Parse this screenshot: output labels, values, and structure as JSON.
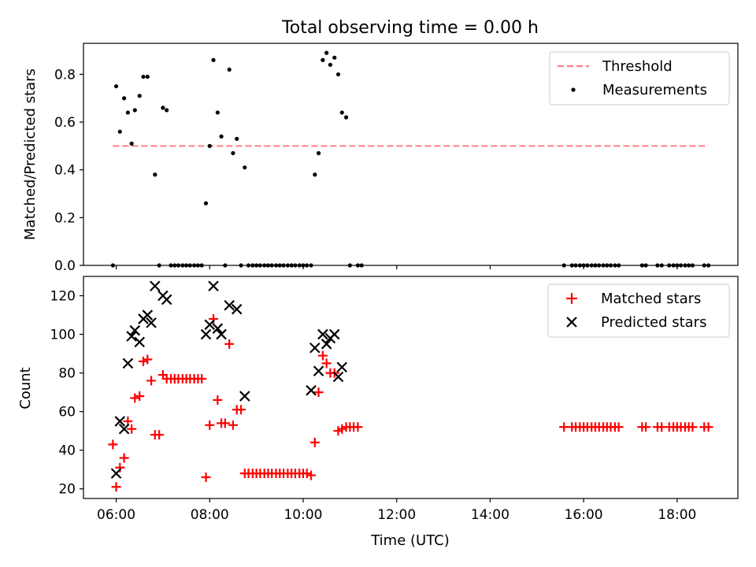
{
  "chart_data": [
    {
      "type": "scatter",
      "title": "Total observing time = 0.00 h",
      "xlabel": "",
      "ylabel": "Matched/Predicted stars",
      "x_unit": "hours UTC",
      "xlim": [
        5.3,
        19.3
      ],
      "ylim": [
        0,
        0.93
      ],
      "yticks": [
        0.0,
        0.2,
        0.4,
        0.6,
        0.8
      ],
      "ytick_labels": [
        "0.0",
        "0.2",
        "0.4",
        "0.6",
        "0.8"
      ],
      "xticks": [
        6,
        8,
        10,
        12,
        14,
        16,
        18
      ],
      "grid": false,
      "legend": {
        "position": "top-right",
        "entries": [
          "Threshold",
          "Measurements"
        ]
      },
      "threshold": {
        "name": "Threshold",
        "value": 0.5,
        "x_start": 5.93,
        "x_end": 18.67,
        "color": "#ff7f7f",
        "style": "dashed"
      },
      "series": [
        {
          "name": "Measurements",
          "marker": "dot",
          "color": "#000000",
          "points": [
            [
              5.93,
              0.0
            ],
            [
              6.0,
              0.75
            ],
            [
              6.08,
              0.56
            ],
            [
              6.17,
              0.7
            ],
            [
              6.25,
              0.64
            ],
            [
              6.33,
              0.51
            ],
            [
              6.4,
              0.65
            ],
            [
              6.5,
              0.71
            ],
            [
              6.58,
              0.79
            ],
            [
              6.67,
              0.79
            ],
            [
              6.83,
              0.38
            ],
            [
              6.92,
              0.0
            ],
            [
              7.0,
              0.66
            ],
            [
              7.08,
              0.65
            ],
            [
              7.17,
              0.0
            ],
            [
              7.25,
              0.0
            ],
            [
              7.33,
              0.0
            ],
            [
              7.42,
              0.0
            ],
            [
              7.5,
              0.0
            ],
            [
              7.58,
              0.0
            ],
            [
              7.67,
              0.0
            ],
            [
              7.75,
              0.0
            ],
            [
              7.83,
              0.0
            ],
            [
              7.92,
              0.26
            ],
            [
              8.0,
              0.5
            ],
            [
              8.08,
              0.86
            ],
            [
              8.17,
              0.64
            ],
            [
              8.25,
              0.54
            ],
            [
              8.33,
              0.0
            ],
            [
              8.42,
              0.82
            ],
            [
              8.5,
              0.47
            ],
            [
              8.58,
              0.53
            ],
            [
              8.67,
              0.0
            ],
            [
              8.75,
              0.41
            ],
            [
              8.83,
              0.0
            ],
            [
              8.92,
              0.0
            ],
            [
              9.0,
              0.0
            ],
            [
              9.08,
              0.0
            ],
            [
              9.17,
              0.0
            ],
            [
              9.25,
              0.0
            ],
            [
              9.33,
              0.0
            ],
            [
              9.42,
              0.0
            ],
            [
              9.5,
              0.0
            ],
            [
              9.58,
              0.0
            ],
            [
              9.67,
              0.0
            ],
            [
              9.75,
              0.0
            ],
            [
              9.83,
              0.0
            ],
            [
              9.92,
              0.0
            ],
            [
              10.0,
              0.0
            ],
            [
              10.08,
              0.0
            ],
            [
              10.17,
              0.0
            ],
            [
              10.25,
              0.38
            ],
            [
              10.33,
              0.47
            ],
            [
              10.42,
              0.86
            ],
            [
              10.5,
              0.89
            ],
            [
              10.58,
              0.84
            ],
            [
              10.67,
              0.87
            ],
            [
              10.75,
              0.8
            ],
            [
              10.83,
              0.64
            ],
            [
              10.92,
              0.62
            ],
            [
              11.0,
              0.0
            ],
            [
              11.17,
              0.0
            ],
            [
              11.25,
              0.0
            ],
            [
              15.58,
              0.0
            ],
            [
              15.75,
              0.0
            ],
            [
              15.83,
              0.0
            ],
            [
              15.92,
              0.0
            ],
            [
              16.0,
              0.0
            ],
            [
              16.08,
              0.0
            ],
            [
              16.17,
              0.0
            ],
            [
              16.25,
              0.0
            ],
            [
              16.33,
              0.0
            ],
            [
              16.42,
              0.0
            ],
            [
              16.5,
              0.0
            ],
            [
              16.58,
              0.0
            ],
            [
              16.67,
              0.0
            ],
            [
              16.75,
              0.0
            ],
            [
              17.25,
              0.0
            ],
            [
              17.33,
              0.0
            ],
            [
              17.58,
              0.0
            ],
            [
              17.67,
              0.0
            ],
            [
              17.83,
              0.0
            ],
            [
              17.92,
              0.0
            ],
            [
              18.0,
              0.0
            ],
            [
              18.08,
              0.0
            ],
            [
              18.17,
              0.0
            ],
            [
              18.25,
              0.0
            ],
            [
              18.33,
              0.0
            ],
            [
              18.58,
              0.0
            ],
            [
              18.67,
              0.0
            ]
          ]
        }
      ]
    },
    {
      "type": "scatter",
      "title": "",
      "xlabel": "Time (UTC)",
      "ylabel": "Count",
      "x_unit": "hours UTC",
      "xlim": [
        5.3,
        19.3
      ],
      "ylim": [
        15,
        130
      ],
      "yticks": [
        20,
        40,
        60,
        80,
        100,
        120
      ],
      "ytick_labels": [
        "20",
        "40",
        "60",
        "80",
        "100",
        "120"
      ],
      "xticks": [
        6,
        8,
        10,
        12,
        14,
        16,
        18
      ],
      "xtick_labels": [
        "06:00",
        "08:00",
        "10:00",
        "12:00",
        "14:00",
        "16:00",
        "18:00"
      ],
      "grid": false,
      "legend": {
        "position": "top-right",
        "entries": [
          "Matched stars",
          "Predicted stars"
        ]
      },
      "series": [
        {
          "name": "Matched stars",
          "marker": "plus",
          "color": "#ff0000",
          "points": [
            [
              5.93,
              43
            ],
            [
              6.0,
              21
            ],
            [
              6.08,
              31
            ],
            [
              6.17,
              36
            ],
            [
              6.25,
              55
            ],
            [
              6.33,
              51
            ],
            [
              6.4,
              67
            ],
            [
              6.5,
              68
            ],
            [
              6.58,
              86
            ],
            [
              6.67,
              87
            ],
            [
              6.75,
              76
            ],
            [
              6.83,
              48
            ],
            [
              6.92,
              48
            ],
            [
              7.0,
              79
            ],
            [
              7.08,
              77
            ],
            [
              7.17,
              77
            ],
            [
              7.25,
              77
            ],
            [
              7.33,
              77
            ],
            [
              7.42,
              77
            ],
            [
              7.5,
              77
            ],
            [
              7.58,
              77
            ],
            [
              7.67,
              77
            ],
            [
              7.75,
              77
            ],
            [
              7.83,
              77
            ],
            [
              7.92,
              26
            ],
            [
              8.0,
              53
            ],
            [
              8.08,
              108
            ],
            [
              8.17,
              66
            ],
            [
              8.25,
              54
            ],
            [
              8.33,
              54
            ],
            [
              8.42,
              95
            ],
            [
              8.5,
              53
            ],
            [
              8.58,
              61
            ],
            [
              8.67,
              61
            ],
            [
              8.75,
              28
            ],
            [
              8.83,
              28
            ],
            [
              8.92,
              28
            ],
            [
              9.0,
              28
            ],
            [
              9.08,
              28
            ],
            [
              9.17,
              28
            ],
            [
              9.25,
              28
            ],
            [
              9.33,
              28
            ],
            [
              9.42,
              28
            ],
            [
              9.5,
              28
            ],
            [
              9.58,
              28
            ],
            [
              9.67,
              28
            ],
            [
              9.75,
              28
            ],
            [
              9.83,
              28
            ],
            [
              9.92,
              28
            ],
            [
              10.0,
              28
            ],
            [
              10.08,
              28
            ],
            [
              10.17,
              27
            ],
            [
              10.25,
              44
            ],
            [
              10.33,
              70
            ],
            [
              10.42,
              89
            ],
            [
              10.5,
              85
            ],
            [
              10.58,
              80
            ],
            [
              10.67,
              80
            ],
            [
              10.75,
              50
            ],
            [
              10.83,
              51
            ],
            [
              10.92,
              52
            ],
            [
              11.0,
              52
            ],
            [
              11.08,
              52
            ],
            [
              11.17,
              52
            ],
            [
              15.58,
              52
            ],
            [
              15.75,
              52
            ],
            [
              15.83,
              52
            ],
            [
              15.92,
              52
            ],
            [
              16.0,
              52
            ],
            [
              16.08,
              52
            ],
            [
              16.17,
              52
            ],
            [
              16.25,
              52
            ],
            [
              16.33,
              52
            ],
            [
              16.42,
              52
            ],
            [
              16.5,
              52
            ],
            [
              16.58,
              52
            ],
            [
              16.67,
              52
            ],
            [
              16.75,
              52
            ],
            [
              17.25,
              52
            ],
            [
              17.33,
              52
            ],
            [
              17.58,
              52
            ],
            [
              17.67,
              52
            ],
            [
              17.83,
              52
            ],
            [
              17.92,
              52
            ],
            [
              18.0,
              52
            ],
            [
              18.08,
              52
            ],
            [
              18.17,
              52
            ],
            [
              18.25,
              52
            ],
            [
              18.33,
              52
            ],
            [
              18.58,
              52
            ],
            [
              18.67,
              52
            ]
          ]
        },
        {
          "name": "Predicted stars",
          "marker": "x",
          "color": "#000000",
          "points": [
            [
              6.0,
              28
            ],
            [
              6.08,
              55
            ],
            [
              6.17,
              51
            ],
            [
              6.25,
              85
            ],
            [
              6.33,
              99
            ],
            [
              6.4,
              102
            ],
            [
              6.5,
              96
            ],
            [
              6.58,
              108
            ],
            [
              6.67,
              110
            ],
            [
              6.75,
              106
            ],
            [
              6.83,
              125
            ],
            [
              7.0,
              120
            ],
            [
              7.08,
              118
            ],
            [
              7.92,
              100
            ],
            [
              8.0,
              105
            ],
            [
              8.08,
              125
            ],
            [
              8.17,
              103
            ],
            [
              8.25,
              100
            ],
            [
              8.42,
              115
            ],
            [
              8.58,
              113
            ],
            [
              8.75,
              68
            ],
            [
              10.17,
              71
            ],
            [
              10.25,
              93
            ],
            [
              10.33,
              81
            ],
            [
              10.42,
              100
            ],
            [
              10.5,
              95
            ],
            [
              10.58,
              98
            ],
            [
              10.67,
              100
            ],
            [
              10.75,
              78
            ],
            [
              10.83,
              83
            ]
          ]
        }
      ]
    }
  ]
}
